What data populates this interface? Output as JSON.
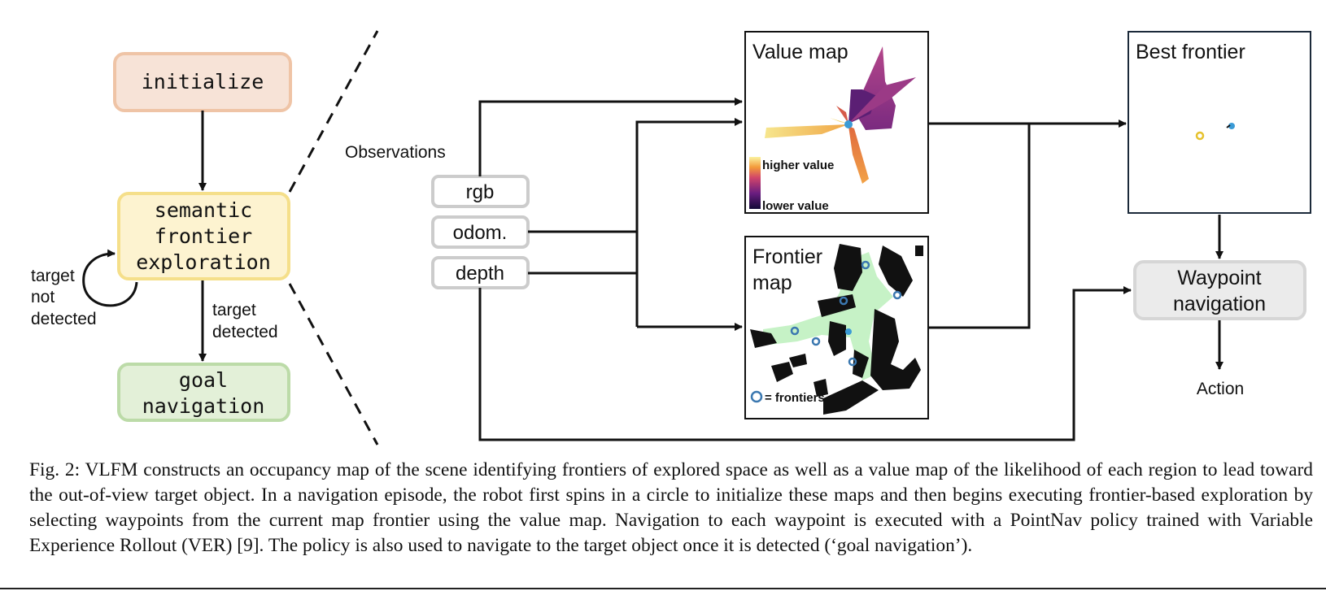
{
  "state_machine": {
    "initialize": "initialize",
    "semantic_line1": "semantic",
    "semantic_line2": "frontier",
    "semantic_line3": "exploration",
    "goal_line1": "goal",
    "goal_line2": "navigation",
    "loop_label_line1": "target",
    "loop_label_line2": "not",
    "loop_label_line3": "detected",
    "down_label_line1": "target",
    "down_label_line2": "detected"
  },
  "pipeline": {
    "observations_label": "Observations",
    "inputs": [
      "rgb",
      "odom.",
      "depth"
    ],
    "value_map": {
      "title": "Value map",
      "legend_high": "higher value",
      "legend_low": "lower value"
    },
    "frontier_map": {
      "title_line1": "Frontier",
      "title_line2": "map",
      "legend": "= frontiers"
    },
    "best_frontier_title": "Best frontier",
    "waypoint_line1": "Waypoint",
    "waypoint_line2": "navigation",
    "action_label": "Action"
  },
  "caption": "Fig. 2: VLFM constructs an occupancy map of the scene identifying frontiers of explored space as well as a value map of the likelihood of each region to lead toward the out-of-view target object. In a navigation episode, the robot first spins in a circle to initialize these maps and then begins executing frontier-based exploration by selecting waypoints from the current map frontier using the value map. Navigation to each waypoint is executed with a PointNav policy trained with Variable Experience Rollout (VER) [9]. The policy is also used to navigate to the target object once it is detected (‘goal navigation’).",
  "colors": {
    "initialize_fill": "#f7e3d7",
    "initialize_border": "#efc4a6",
    "semantic_fill": "#fdf3d0",
    "semantic_border": "#f5df8a",
    "goal_fill": "#e3f0d8",
    "goal_border": "#bcdba8",
    "frontier_free": "#c6f2c6",
    "frontier_marker": "#3b78b0",
    "best_frontier_marker": "#e6c22e",
    "agent": "#3b9bd6"
  }
}
